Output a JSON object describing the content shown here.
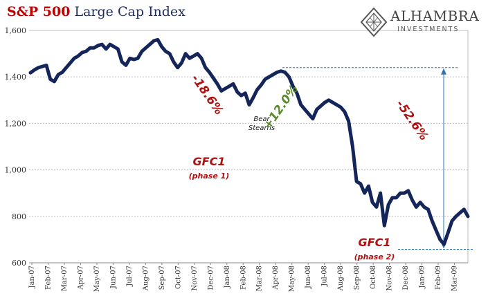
{
  "header": {
    "title_highlight": "S&P 500",
    "title_rest": "Large Cap Index"
  },
  "logo": {
    "name": "ALHAMBRA",
    "subtitle": "INVESTMENTS"
  },
  "colors": {
    "series": "#14255a",
    "negative": "#b01010",
    "positive": "#5a8a2a",
    "marker": "#2e75b6",
    "grid": "#bfbfbf"
  },
  "chart_data": {
    "type": "line",
    "series": [
      {
        "values": [
          1418,
          1430,
          1440,
          1445,
          1450,
          1390,
          1380,
          1410,
          1420,
          1440,
          1460,
          1480,
          1490,
          1505,
          1510,
          1525,
          1525,
          1535,
          1540,
          1520,
          1540,
          1530,
          1520,
          1465,
          1450,
          1480,
          1475,
          1480,
          1510,
          1525,
          1540,
          1555,
          1560,
          1530,
          1510,
          1500,
          1465,
          1440,
          1460,
          1500,
          1480,
          1490,
          1500,
          1480,
          1440,
          1420,
          1395,
          1370,
          1340,
          1350,
          1360,
          1370,
          1335,
          1320,
          1330,
          1280,
          1310,
          1345,
          1365,
          1390,
          1400,
          1410,
          1420,
          1425,
          1420,
          1400,
          1360,
          1330,
          1280,
          1260,
          1240,
          1220,
          1260,
          1275,
          1290,
          1300,
          1290,
          1280,
          1270,
          1250,
          1210,
          1100,
          950,
          940,
          900,
          930,
          860,
          840,
          900,
          760,
          850,
          880,
          880,
          900,
          900,
          910,
          870,
          840,
          860,
          840,
          830,
          780,
          740,
          700,
          680,
          730,
          780,
          800,
          815,
          830,
          800
        ]
      }
    ],
    "x_tick_labels": [
      "Jan-07",
      "Feb-07",
      "Mar-07",
      "Apr-07",
      "May-07",
      "Jun-07",
      "Jul-07",
      "Aug-07",
      "Sep-07",
      "Oct-07",
      "Nov-07",
      "Dec-07",
      "Jan-08",
      "Feb-08",
      "Mar-08",
      "Apr-08",
      "May-08",
      "Jun-08",
      "Jul-08",
      "Aug-08",
      "Sep-08",
      "Oct-08",
      "Nov-08",
      "Dec-08",
      "Jan-09",
      "Feb-09",
      "Mar-09"
    ],
    "y_ticks": [
      "1,600",
      "1,400",
      "1,200",
      "1,000",
      "800",
      "600"
    ],
    "ylim": [
      600,
      1600
    ],
    "grid": true,
    "annotations": [
      {
        "text": "-18.6%",
        "color": "negative"
      },
      {
        "text": "+12.0%",
        "color": "positive"
      },
      {
        "text": "-52.6%",
        "color": "negative"
      },
      {
        "text": "Bear",
        "color": "black"
      },
      {
        "text": "Stearns",
        "color": "black"
      },
      {
        "text": "GFC1",
        "color": "negative"
      },
      {
        "text": "(phase 1)",
        "color": "negative"
      },
      {
        "text": "GFC1",
        "color": "negative"
      },
      {
        "text": "(phase 2)",
        "color": "negative"
      }
    ],
    "reference_levels": [
      1440,
      658
    ]
  }
}
